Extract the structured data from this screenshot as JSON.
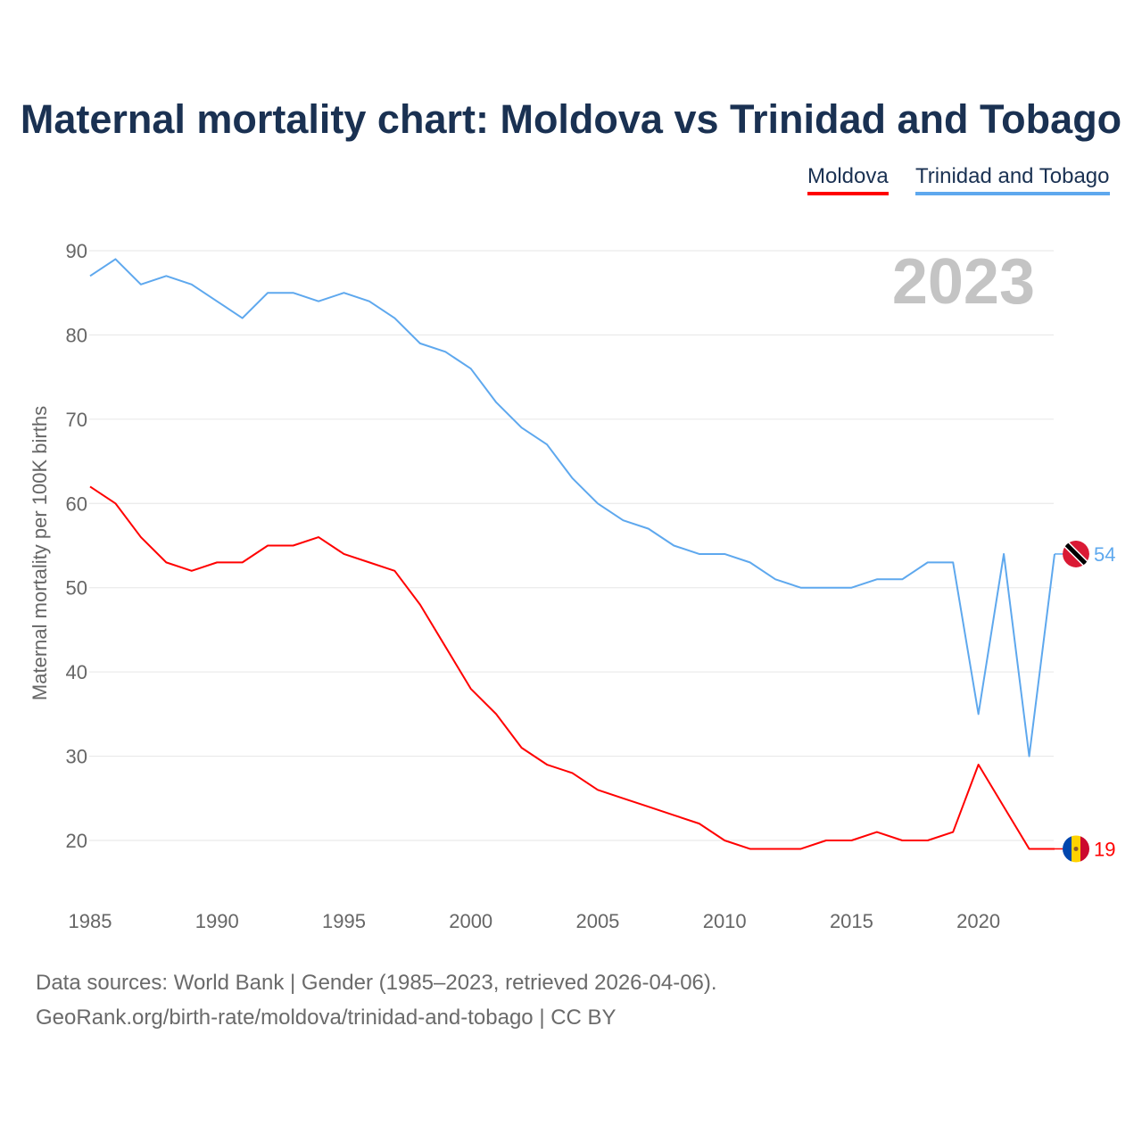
{
  "chart_data": {
    "type": "line",
    "title": "Maternal mortality chart: Moldova vs Trinidad and Tobago",
    "xlabel": "",
    "ylabel": "Maternal mortality per 100K births",
    "xlim": [
      1985,
      2023
    ],
    "ylim": [
      20,
      90
    ],
    "x_ticks": [
      1985,
      1990,
      1995,
      2000,
      2005,
      2010,
      2015,
      2020
    ],
    "y_ticks": [
      20,
      30,
      40,
      50,
      60,
      70,
      80,
      90
    ],
    "grid": true,
    "legend_position": "top-right",
    "year_label": "2023",
    "x": [
      1985,
      1986,
      1987,
      1988,
      1989,
      1990,
      1991,
      1992,
      1993,
      1994,
      1995,
      1996,
      1997,
      1998,
      1999,
      2000,
      2001,
      2002,
      2003,
      2004,
      2005,
      2006,
      2007,
      2008,
      2009,
      2010,
      2011,
      2012,
      2013,
      2014,
      2015,
      2016,
      2017,
      2018,
      2019,
      2020,
      2021,
      2022,
      2023
    ],
    "series": [
      {
        "name": "Moldova",
        "color": "#ff0000",
        "end_label": "19",
        "values": [
          62,
          60,
          56,
          53,
          52,
          53,
          53,
          55,
          55,
          56,
          54,
          53,
          52,
          48,
          43,
          38,
          35,
          31,
          29,
          28,
          26,
          25,
          24,
          23,
          22,
          20,
          19,
          19,
          19,
          20,
          20,
          21,
          20,
          20,
          21,
          29,
          24,
          19,
          19
        ]
      },
      {
        "name": "Trinidad and Tobago",
        "color": "#5ea8ee",
        "end_label": "54",
        "values": [
          87,
          89,
          86,
          87,
          86,
          84,
          82,
          85,
          85,
          84,
          85,
          84,
          82,
          79,
          78,
          76,
          72,
          69,
          67,
          63,
          60,
          58,
          57,
          55,
          54,
          54,
          53,
          51,
          50,
          50,
          50,
          51,
          51,
          53,
          53,
          35,
          54,
          30,
          54
        ]
      }
    ]
  },
  "footer": {
    "line1": "Data sources: World Bank | Gender (1985–2023, retrieved 2026-04-06).",
    "line2": "GeoRank.org/birth-rate/moldova/trinidad-and-tobago | CC BY"
  }
}
